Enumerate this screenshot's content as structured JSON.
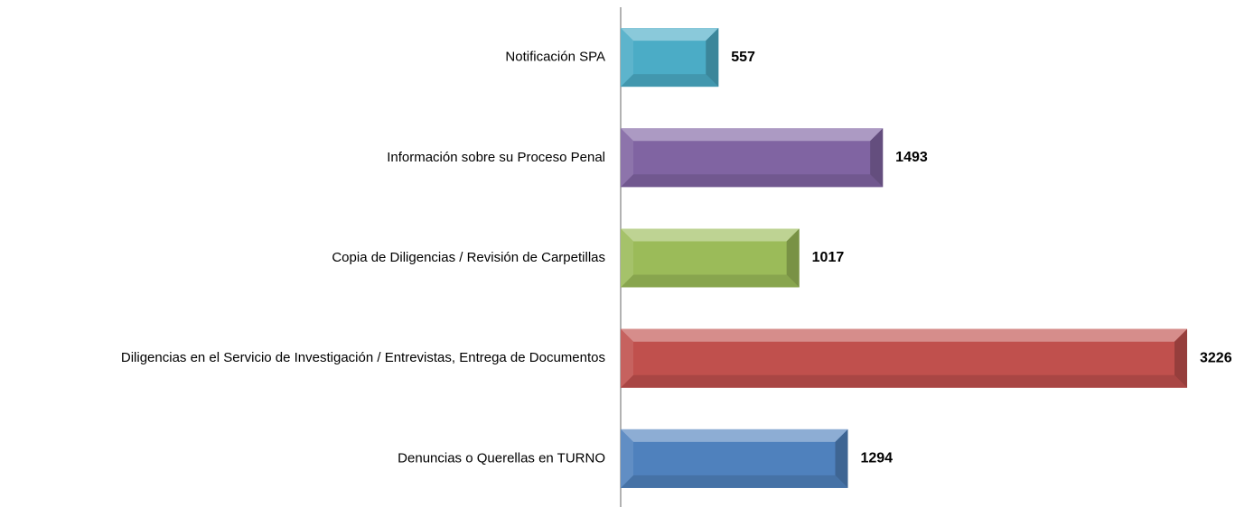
{
  "chart_data": {
    "type": "bar",
    "orientation": "horizontal",
    "categories": [
      "Notificación SPA",
      "Información sobre su Proceso Penal",
      "Copia de Diligencias / Revisión de Carpetillas",
      "Diligencias en el Servicio de Investigación / Entrevistas, Entrega de Documentos",
      "Denuncias o Querellas en TURNO"
    ],
    "values": [
      557,
      1493,
      1017,
      3226,
      1294
    ],
    "colors": [
      "#4bacc6",
      "#8064a2",
      "#9bbb59",
      "#c0504d",
      "#4f81bd"
    ]
  }
}
